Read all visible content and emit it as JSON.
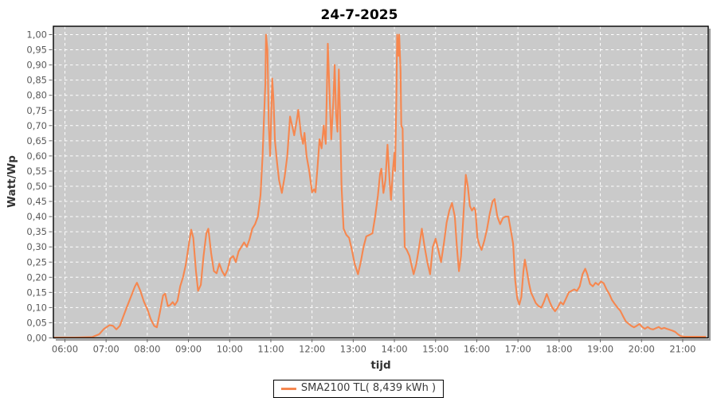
{
  "title": "24-7-2025",
  "legend": {
    "label": "SMA2100 TL( 8,439 kWh )"
  },
  "chart_data": {
    "type": "line",
    "title": "24-7-2025",
    "xlabel": "tijd",
    "ylabel": "Watt/Wp",
    "x_domain_hours": [
      5.72,
      21.62
    ],
    "ylim": [
      0,
      1.027
    ],
    "grid": true,
    "legend_position": "bottom-center",
    "colors": {
      "plot_bg": "#cacaca",
      "grid": "#ffffff",
      "line": "#f6874f",
      "tick_text": "#5a5a5a",
      "tick_mark": "#666666",
      "border": "#000000",
      "shadow": "#9e9e9e"
    },
    "x_ticks": [
      {
        "v": 6,
        "label": "06:00"
      },
      {
        "v": 7,
        "label": "07:00"
      },
      {
        "v": 8,
        "label": "08:00"
      },
      {
        "v": 9,
        "label": "09:00"
      },
      {
        "v": 10,
        "label": "10:00"
      },
      {
        "v": 11,
        "label": "11:00"
      },
      {
        "v": 12,
        "label": "12:00"
      },
      {
        "v": 13,
        "label": "13:00"
      },
      {
        "v": 14,
        "label": "14:00"
      },
      {
        "v": 15,
        "label": "15:00"
      },
      {
        "v": 16,
        "label": "16:00"
      },
      {
        "v": 17,
        "label": "17:00"
      },
      {
        "v": 18,
        "label": "18:00"
      },
      {
        "v": 19,
        "label": "19:00"
      },
      {
        "v": 20,
        "label": "20:00"
      },
      {
        "v": 21,
        "label": "21:00"
      }
    ],
    "y_ticks": [
      {
        "v": 0.0,
        "label": "0,00"
      },
      {
        "v": 0.05,
        "label": "0,05"
      },
      {
        "v": 0.1,
        "label": "0,10"
      },
      {
        "v": 0.15,
        "label": "0,15"
      },
      {
        "v": 0.2,
        "label": "0,20"
      },
      {
        "v": 0.25,
        "label": "0,25"
      },
      {
        "v": 0.3,
        "label": "0,30"
      },
      {
        "v": 0.35,
        "label": "0,35"
      },
      {
        "v": 0.4,
        "label": "0,40"
      },
      {
        "v": 0.45,
        "label": "0,45"
      },
      {
        "v": 0.5,
        "label": "0,50"
      },
      {
        "v": 0.55,
        "label": "0,55"
      },
      {
        "v": 0.6,
        "label": "0,60"
      },
      {
        "v": 0.65,
        "label": "0,65"
      },
      {
        "v": 0.7,
        "label": "0,70"
      },
      {
        "v": 0.75,
        "label": "0,75"
      },
      {
        "v": 0.8,
        "label": "0,80"
      },
      {
        "v": 0.85,
        "label": "0,85"
      },
      {
        "v": 0.9,
        "label": "0,90"
      },
      {
        "v": 0.95,
        "label": "0,95"
      },
      {
        "v": 1.0,
        "label": "1,00"
      }
    ],
    "series": [
      {
        "name": "SMA2100 TL( 8,439 kWh )",
        "color": "#f6874f",
        "points": [
          [
            5.75,
            0.001
          ],
          [
            6.0,
            0.001
          ],
          [
            6.25,
            0.001
          ],
          [
            6.5,
            0.002
          ],
          [
            6.667,
            0.003
          ],
          [
            6.833,
            0.012
          ],
          [
            6.95,
            0.03
          ],
          [
            7.083,
            0.042
          ],
          [
            7.167,
            0.04
          ],
          [
            7.25,
            0.028
          ],
          [
            7.333,
            0.04
          ],
          [
            7.417,
            0.07
          ],
          [
            7.5,
            0.1
          ],
          [
            7.6,
            0.135
          ],
          [
            7.7,
            0.17
          ],
          [
            7.75,
            0.182
          ],
          [
            7.833,
            0.155
          ],
          [
            7.917,
            0.12
          ],
          [
            8.0,
            0.095
          ],
          [
            8.083,
            0.062
          ],
          [
            8.167,
            0.04
          ],
          [
            8.233,
            0.035
          ],
          [
            8.3,
            0.08
          ],
          [
            8.383,
            0.14
          ],
          [
            8.433,
            0.146
          ],
          [
            8.5,
            0.105
          ],
          [
            8.55,
            0.108
          ],
          [
            8.617,
            0.118
          ],
          [
            8.667,
            0.108
          ],
          [
            8.733,
            0.122
          ],
          [
            8.8,
            0.17
          ],
          [
            8.867,
            0.2
          ],
          [
            8.933,
            0.24
          ],
          [
            9.0,
            0.3
          ],
          [
            9.067,
            0.357
          ],
          [
            9.117,
            0.33
          ],
          [
            9.183,
            0.22
          ],
          [
            9.233,
            0.155
          ],
          [
            9.3,
            0.175
          ],
          [
            9.367,
            0.27
          ],
          [
            9.433,
            0.345
          ],
          [
            9.483,
            0.36
          ],
          [
            9.55,
            0.28
          ],
          [
            9.617,
            0.22
          ],
          [
            9.683,
            0.213
          ],
          [
            9.75,
            0.245
          ],
          [
            9.817,
            0.22
          ],
          [
            9.883,
            0.205
          ],
          [
            9.95,
            0.225
          ],
          [
            10.017,
            0.262
          ],
          [
            10.083,
            0.27
          ],
          [
            10.15,
            0.25
          ],
          [
            10.217,
            0.285
          ],
          [
            10.283,
            0.3
          ],
          [
            10.35,
            0.315
          ],
          [
            10.417,
            0.3
          ],
          [
            10.483,
            0.325
          ],
          [
            10.55,
            0.36
          ],
          [
            10.617,
            0.375
          ],
          [
            10.683,
            0.4
          ],
          [
            10.75,
            0.47
          ],
          [
            10.8,
            0.6
          ],
          [
            10.833,
            0.72
          ],
          [
            10.867,
            0.84
          ],
          [
            10.883,
            1.0
          ],
          [
            10.917,
            0.95
          ],
          [
            10.95,
            0.7
          ],
          [
            10.983,
            0.6
          ],
          [
            11.033,
            0.855
          ],
          [
            11.067,
            0.78
          ],
          [
            11.1,
            0.65
          ],
          [
            11.15,
            0.58
          ],
          [
            11.2,
            0.52
          ],
          [
            11.267,
            0.478
          ],
          [
            11.333,
            0.53
          ],
          [
            11.4,
            0.6
          ],
          [
            11.467,
            0.73
          ],
          [
            11.517,
            0.7
          ],
          [
            11.567,
            0.668
          ],
          [
            11.633,
            0.72
          ],
          [
            11.667,
            0.752
          ],
          [
            11.733,
            0.67
          ],
          [
            11.783,
            0.64
          ],
          [
            11.817,
            0.676
          ],
          [
            11.867,
            0.6
          ],
          [
            11.933,
            0.55
          ],
          [
            12.0,
            0.48
          ],
          [
            12.05,
            0.49
          ],
          [
            12.083,
            0.48
          ],
          [
            12.133,
            0.56
          ],
          [
            12.183,
            0.655
          ],
          [
            12.233,
            0.625
          ],
          [
            12.283,
            0.7
          ],
          [
            12.333,
            0.64
          ],
          [
            12.383,
            0.97
          ],
          [
            12.433,
            0.78
          ],
          [
            12.467,
            0.655
          ],
          [
            12.517,
            0.78
          ],
          [
            12.55,
            0.9
          ],
          [
            12.583,
            0.74
          ],
          [
            12.617,
            0.68
          ],
          [
            12.65,
            0.885
          ],
          [
            12.683,
            0.72
          ],
          [
            12.717,
            0.5
          ],
          [
            12.767,
            0.36
          ],
          [
            12.833,
            0.34
          ],
          [
            12.9,
            0.33
          ],
          [
            12.967,
            0.29
          ],
          [
            13.033,
            0.245
          ],
          [
            13.117,
            0.21
          ],
          [
            13.183,
            0.25
          ],
          [
            13.25,
            0.3
          ],
          [
            13.317,
            0.335
          ],
          [
            13.4,
            0.34
          ],
          [
            13.467,
            0.345
          ],
          [
            13.533,
            0.4
          ],
          [
            13.6,
            0.47
          ],
          [
            13.65,
            0.54
          ],
          [
            13.683,
            0.558
          ],
          [
            13.733,
            0.478
          ],
          [
            13.783,
            0.52
          ],
          [
            13.833,
            0.637
          ],
          [
            13.883,
            0.52
          ],
          [
            13.917,
            0.455
          ],
          [
            13.967,
            0.56
          ],
          [
            14.0,
            0.61
          ],
          [
            14.017,
            0.55
          ],
          [
            14.05,
            0.8
          ],
          [
            14.067,
            1.0
          ],
          [
            14.1,
            0.93
          ],
          [
            14.117,
            1.0
          ],
          [
            14.15,
            0.88
          ],
          [
            14.167,
            0.7
          ],
          [
            14.2,
            0.69
          ],
          [
            14.217,
            0.5
          ],
          [
            14.25,
            0.3
          ],
          [
            14.3,
            0.29
          ],
          [
            14.367,
            0.27
          ],
          [
            14.4,
            0.25
          ],
          [
            14.467,
            0.21
          ],
          [
            14.533,
            0.245
          ],
          [
            14.6,
            0.3
          ],
          [
            14.667,
            0.36
          ],
          [
            14.733,
            0.3
          ],
          [
            14.8,
            0.25
          ],
          [
            14.867,
            0.21
          ],
          [
            14.933,
            0.3
          ],
          [
            15.0,
            0.327
          ],
          [
            15.067,
            0.29
          ],
          [
            15.133,
            0.25
          ],
          [
            15.2,
            0.31
          ],
          [
            15.267,
            0.38
          ],
          [
            15.333,
            0.42
          ],
          [
            15.4,
            0.445
          ],
          [
            15.467,
            0.4
          ],
          [
            15.517,
            0.3
          ],
          [
            15.567,
            0.22
          ],
          [
            15.617,
            0.27
          ],
          [
            15.667,
            0.38
          ],
          [
            15.733,
            0.538
          ],
          [
            15.783,
            0.5
          ],
          [
            15.833,
            0.435
          ],
          [
            15.883,
            0.42
          ],
          [
            15.933,
            0.43
          ],
          [
            15.967,
            0.42
          ],
          [
            16.017,
            0.33
          ],
          [
            16.067,
            0.305
          ],
          [
            16.117,
            0.29
          ],
          [
            16.183,
            0.32
          ],
          [
            16.25,
            0.36
          ],
          [
            16.317,
            0.41
          ],
          [
            16.383,
            0.45
          ],
          [
            16.433,
            0.458
          ],
          [
            16.5,
            0.4
          ],
          [
            16.567,
            0.375
          ],
          [
            16.633,
            0.395
          ],
          [
            16.7,
            0.4
          ],
          [
            16.767,
            0.4
          ],
          [
            16.833,
            0.35
          ],
          [
            16.883,
            0.31
          ],
          [
            16.933,
            0.19
          ],
          [
            16.983,
            0.13
          ],
          [
            17.033,
            0.11
          ],
          [
            17.083,
            0.135
          ],
          [
            17.133,
            0.22
          ],
          [
            17.167,
            0.258
          ],
          [
            17.217,
            0.22
          ],
          [
            17.267,
            0.18
          ],
          [
            17.317,
            0.15
          ],
          [
            17.367,
            0.135
          ],
          [
            17.433,
            0.115
          ],
          [
            17.5,
            0.105
          ],
          [
            17.567,
            0.1
          ],
          [
            17.633,
            0.12
          ],
          [
            17.7,
            0.145
          ],
          [
            17.767,
            0.12
          ],
          [
            17.833,
            0.1
          ],
          [
            17.9,
            0.088
          ],
          [
            17.967,
            0.1
          ],
          [
            18.033,
            0.118
          ],
          [
            18.1,
            0.11
          ],
          [
            18.167,
            0.13
          ],
          [
            18.233,
            0.15
          ],
          [
            18.3,
            0.155
          ],
          [
            18.367,
            0.16
          ],
          [
            18.433,
            0.155
          ],
          [
            18.5,
            0.17
          ],
          [
            18.567,
            0.21
          ],
          [
            18.633,
            0.228
          ],
          [
            18.683,
            0.21
          ],
          [
            18.75,
            0.178
          ],
          [
            18.817,
            0.17
          ],
          [
            18.883,
            0.182
          ],
          [
            18.95,
            0.175
          ],
          [
            19.017,
            0.186
          ],
          [
            19.083,
            0.18
          ],
          [
            19.15,
            0.16
          ],
          [
            19.217,
            0.145
          ],
          [
            19.283,
            0.125
          ],
          [
            19.35,
            0.112
          ],
          [
            19.417,
            0.1
          ],
          [
            19.483,
            0.09
          ],
          [
            19.55,
            0.072
          ],
          [
            19.617,
            0.055
          ],
          [
            19.683,
            0.047
          ],
          [
            19.75,
            0.04
          ],
          [
            19.817,
            0.035
          ],
          [
            19.883,
            0.04
          ],
          [
            19.95,
            0.046
          ],
          [
            20.017,
            0.036
          ],
          [
            20.083,
            0.03
          ],
          [
            20.15,
            0.036
          ],
          [
            20.217,
            0.03
          ],
          [
            20.283,
            0.028
          ],
          [
            20.35,
            0.032
          ],
          [
            20.417,
            0.036
          ],
          [
            20.483,
            0.03
          ],
          [
            20.55,
            0.033
          ],
          [
            20.617,
            0.03
          ],
          [
            20.683,
            0.027
          ],
          [
            20.75,
            0.024
          ],
          [
            20.817,
            0.02
          ],
          [
            20.883,
            0.012
          ],
          [
            20.95,
            0.006
          ],
          [
            21.033,
            0.004
          ],
          [
            21.167,
            0.004
          ],
          [
            21.333,
            0.004
          ],
          [
            21.55,
            0.004
          ]
        ]
      }
    ]
  }
}
